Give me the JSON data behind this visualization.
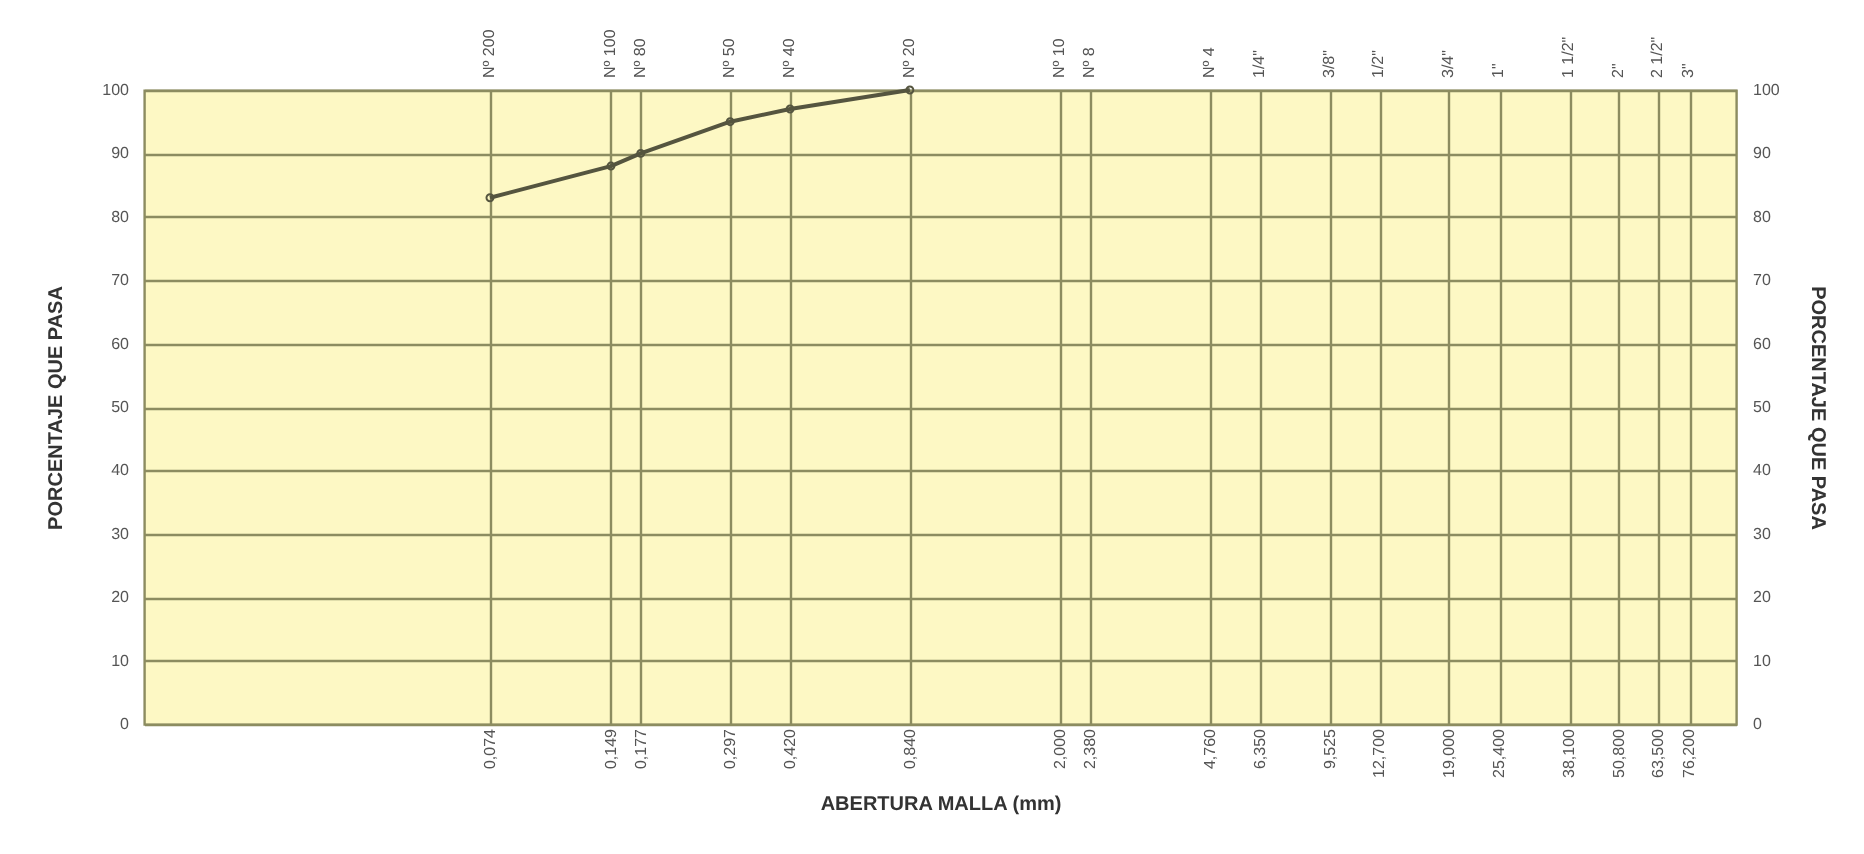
{
  "chart_data": {
    "type": "line",
    "xlabel": "ABERTURA MALLA (mm)",
    "ylabel": "PORCENTAJE QUE PASA",
    "y2label": "PORCENTAJE QUE PASA",
    "x": [
      0.074,
      0.149,
      0.177,
      0.297,
      0.42,
      0.84
    ],
    "series": [
      {
        "color": "#55553f",
        "values": [
          83,
          88,
          90,
          95,
          97,
          100
        ]
      }
    ],
    "log": "x",
    "grid": true,
    "marker": "circle",
    "xlim": [
      0.01,
      100
    ],
    "xticks": [
      {
        "value": 0.074,
        "label": "0,074"
      },
      {
        "value": 0.149,
        "label": "0,149"
      },
      {
        "value": 0.177,
        "label": "0,177"
      },
      {
        "value": 0.297,
        "label": "0,297"
      },
      {
        "value": 0.42,
        "label": "0,420"
      },
      {
        "value": 0.84,
        "label": "0,840"
      },
      {
        "value": 2,
        "label": "2,000"
      },
      {
        "value": 2.38,
        "label": "2,380"
      },
      {
        "value": 4.76,
        "label": "4,760"
      },
      {
        "value": 6.35,
        "label": "6,350"
      },
      {
        "value": 9.525,
        "label": "9,525"
      },
      {
        "value": 12.7,
        "label": "12,700"
      },
      {
        "value": 19,
        "label": "19,000"
      },
      {
        "value": 25.4,
        "label": "25,400"
      },
      {
        "value": 38.1,
        "label": "38,100"
      },
      {
        "value": 50.8,
        "label": "50,800"
      },
      {
        "value": 63.5,
        "label": "63,500"
      },
      {
        "value": 76.2,
        "label": "76,200"
      }
    ],
    "ylim": [
      0,
      100
    ],
    "yticks": [
      0,
      10,
      20,
      30,
      40,
      50,
      60,
      70,
      80,
      90,
      100
    ],
    "y2lim": [
      0,
      100
    ],
    "y2ticks": [
      0,
      10,
      20,
      30,
      40,
      50,
      60,
      70,
      80,
      90,
      100
    ],
    "annotations": [
      "Nº 200",
      "Nº 100",
      "Nº 80",
      "Nº 50",
      "Nº 40",
      "Nº 20",
      "Nº 10",
      "Nº 8",
      "Nº 4",
      "1/4\"",
      "3/8\"",
      "1/2\"",
      "3/4\"",
      "1\"",
      "1 1/2\"",
      "2\"",
      "2 1/2\"",
      "3\""
    ]
  }
}
